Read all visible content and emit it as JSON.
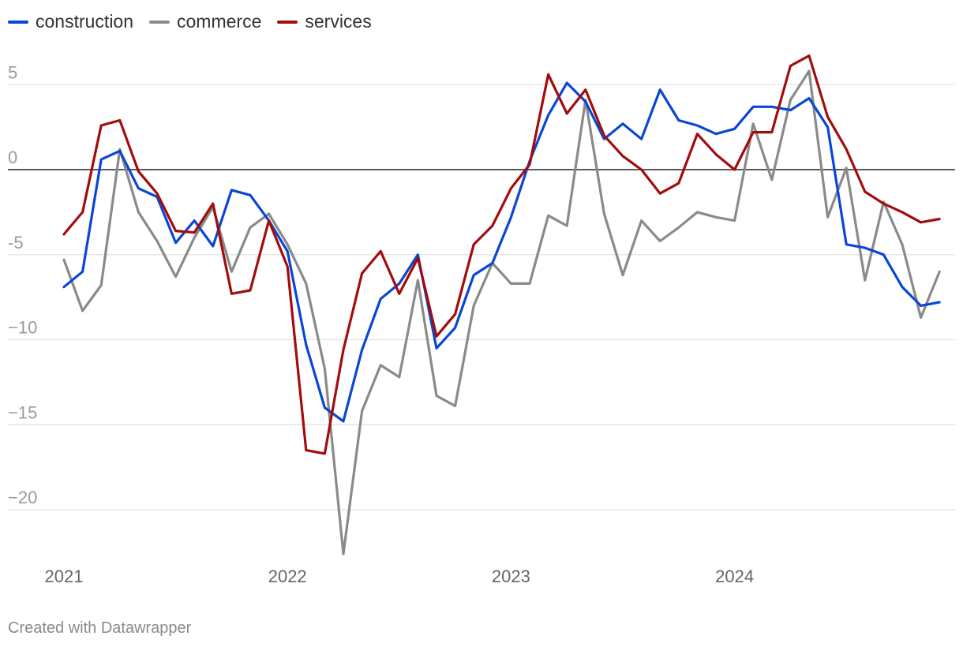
{
  "chart_data": {
    "type": "line",
    "title": "",
    "xlabel": "",
    "ylabel": "",
    "x_tick_labels": [
      "2021",
      "2022",
      "2023",
      "2024"
    ],
    "x_tick_months": [
      0,
      12,
      24,
      36
    ],
    "y_ticks": [
      5,
      0,
      -5,
      -10,
      -15,
      -20
    ],
    "y_tick_labels": [
      "5",
      "0",
      "-5",
      "−10",
      "−15",
      "−20"
    ],
    "ylim": [
      -23,
      7
    ],
    "zero_line": true,
    "series": [
      {
        "name": "construction",
        "color": "#0a46d6",
        "values": [
          -6.9,
          -6.0,
          0.6,
          1.1,
          -1.1,
          -1.6,
          -4.3,
          -3.0,
          -4.5,
          -1.2,
          -1.5,
          -3.0,
          -4.8,
          -10.3,
          -14.0,
          -14.8,
          -10.6,
          -7.6,
          -6.7,
          -5.0,
          -10.5,
          -9.3,
          -6.2,
          -5.5,
          -2.8,
          0.5,
          3.2,
          5.1,
          4.0,
          1.8,
          2.7,
          1.8,
          4.7,
          2.9,
          2.6,
          2.1,
          2.4,
          3.7,
          3.7,
          3.5,
          4.2,
          2.5,
          -4.4,
          -4.6,
          -5.0,
          -6.9,
          -8.0,
          -7.8
        ]
      },
      {
        "name": "commerce",
        "color": "#8a8a8a",
        "values": [
          -5.3,
          -8.3,
          -6.8,
          1.2,
          -2.5,
          -4.2,
          -6.3,
          -4.0,
          -2.2,
          -6.0,
          -3.4,
          -2.6,
          -4.4,
          -6.7,
          -11.7,
          -22.6,
          -14.2,
          -11.5,
          -12.2,
          -6.5,
          -13.3,
          -13.9,
          -8.0,
          -5.5,
          -6.7,
          -6.7,
          -2.7,
          -3.3,
          4.1,
          -2.6,
          -6.2,
          -3.0,
          -4.2,
          -3.4,
          -2.5,
          -2.8,
          -3.0,
          2.7,
          -0.6,
          4.1,
          5.8,
          -2.8,
          0.1,
          -6.5,
          -1.9,
          -4.4,
          -8.7,
          -6.0
        ]
      },
      {
        "name": "services",
        "color": "#a30c0c",
        "values": [
          -3.8,
          -2.5,
          2.6,
          2.9,
          -0.1,
          -1.4,
          -3.6,
          -3.7,
          -2.0,
          -7.3,
          -7.1,
          -3.0,
          -5.7,
          -16.5,
          -16.7,
          -10.6,
          -6.1,
          -4.8,
          -7.3,
          -5.2,
          -9.8,
          -8.5,
          -4.4,
          -3.3,
          -1.1,
          0.3,
          5.6,
          3.3,
          4.7,
          2.0,
          0.8,
          0.0,
          -1.4,
          -0.8,
          2.1,
          0.9,
          0.0,
          2.2,
          2.2,
          6.1,
          6.7,
          3.1,
          1.2,
          -1.3,
          -2.0,
          -2.5,
          -3.1,
          -2.9
        ]
      }
    ]
  },
  "footer": {
    "credit": "Created with Datawrapper"
  }
}
